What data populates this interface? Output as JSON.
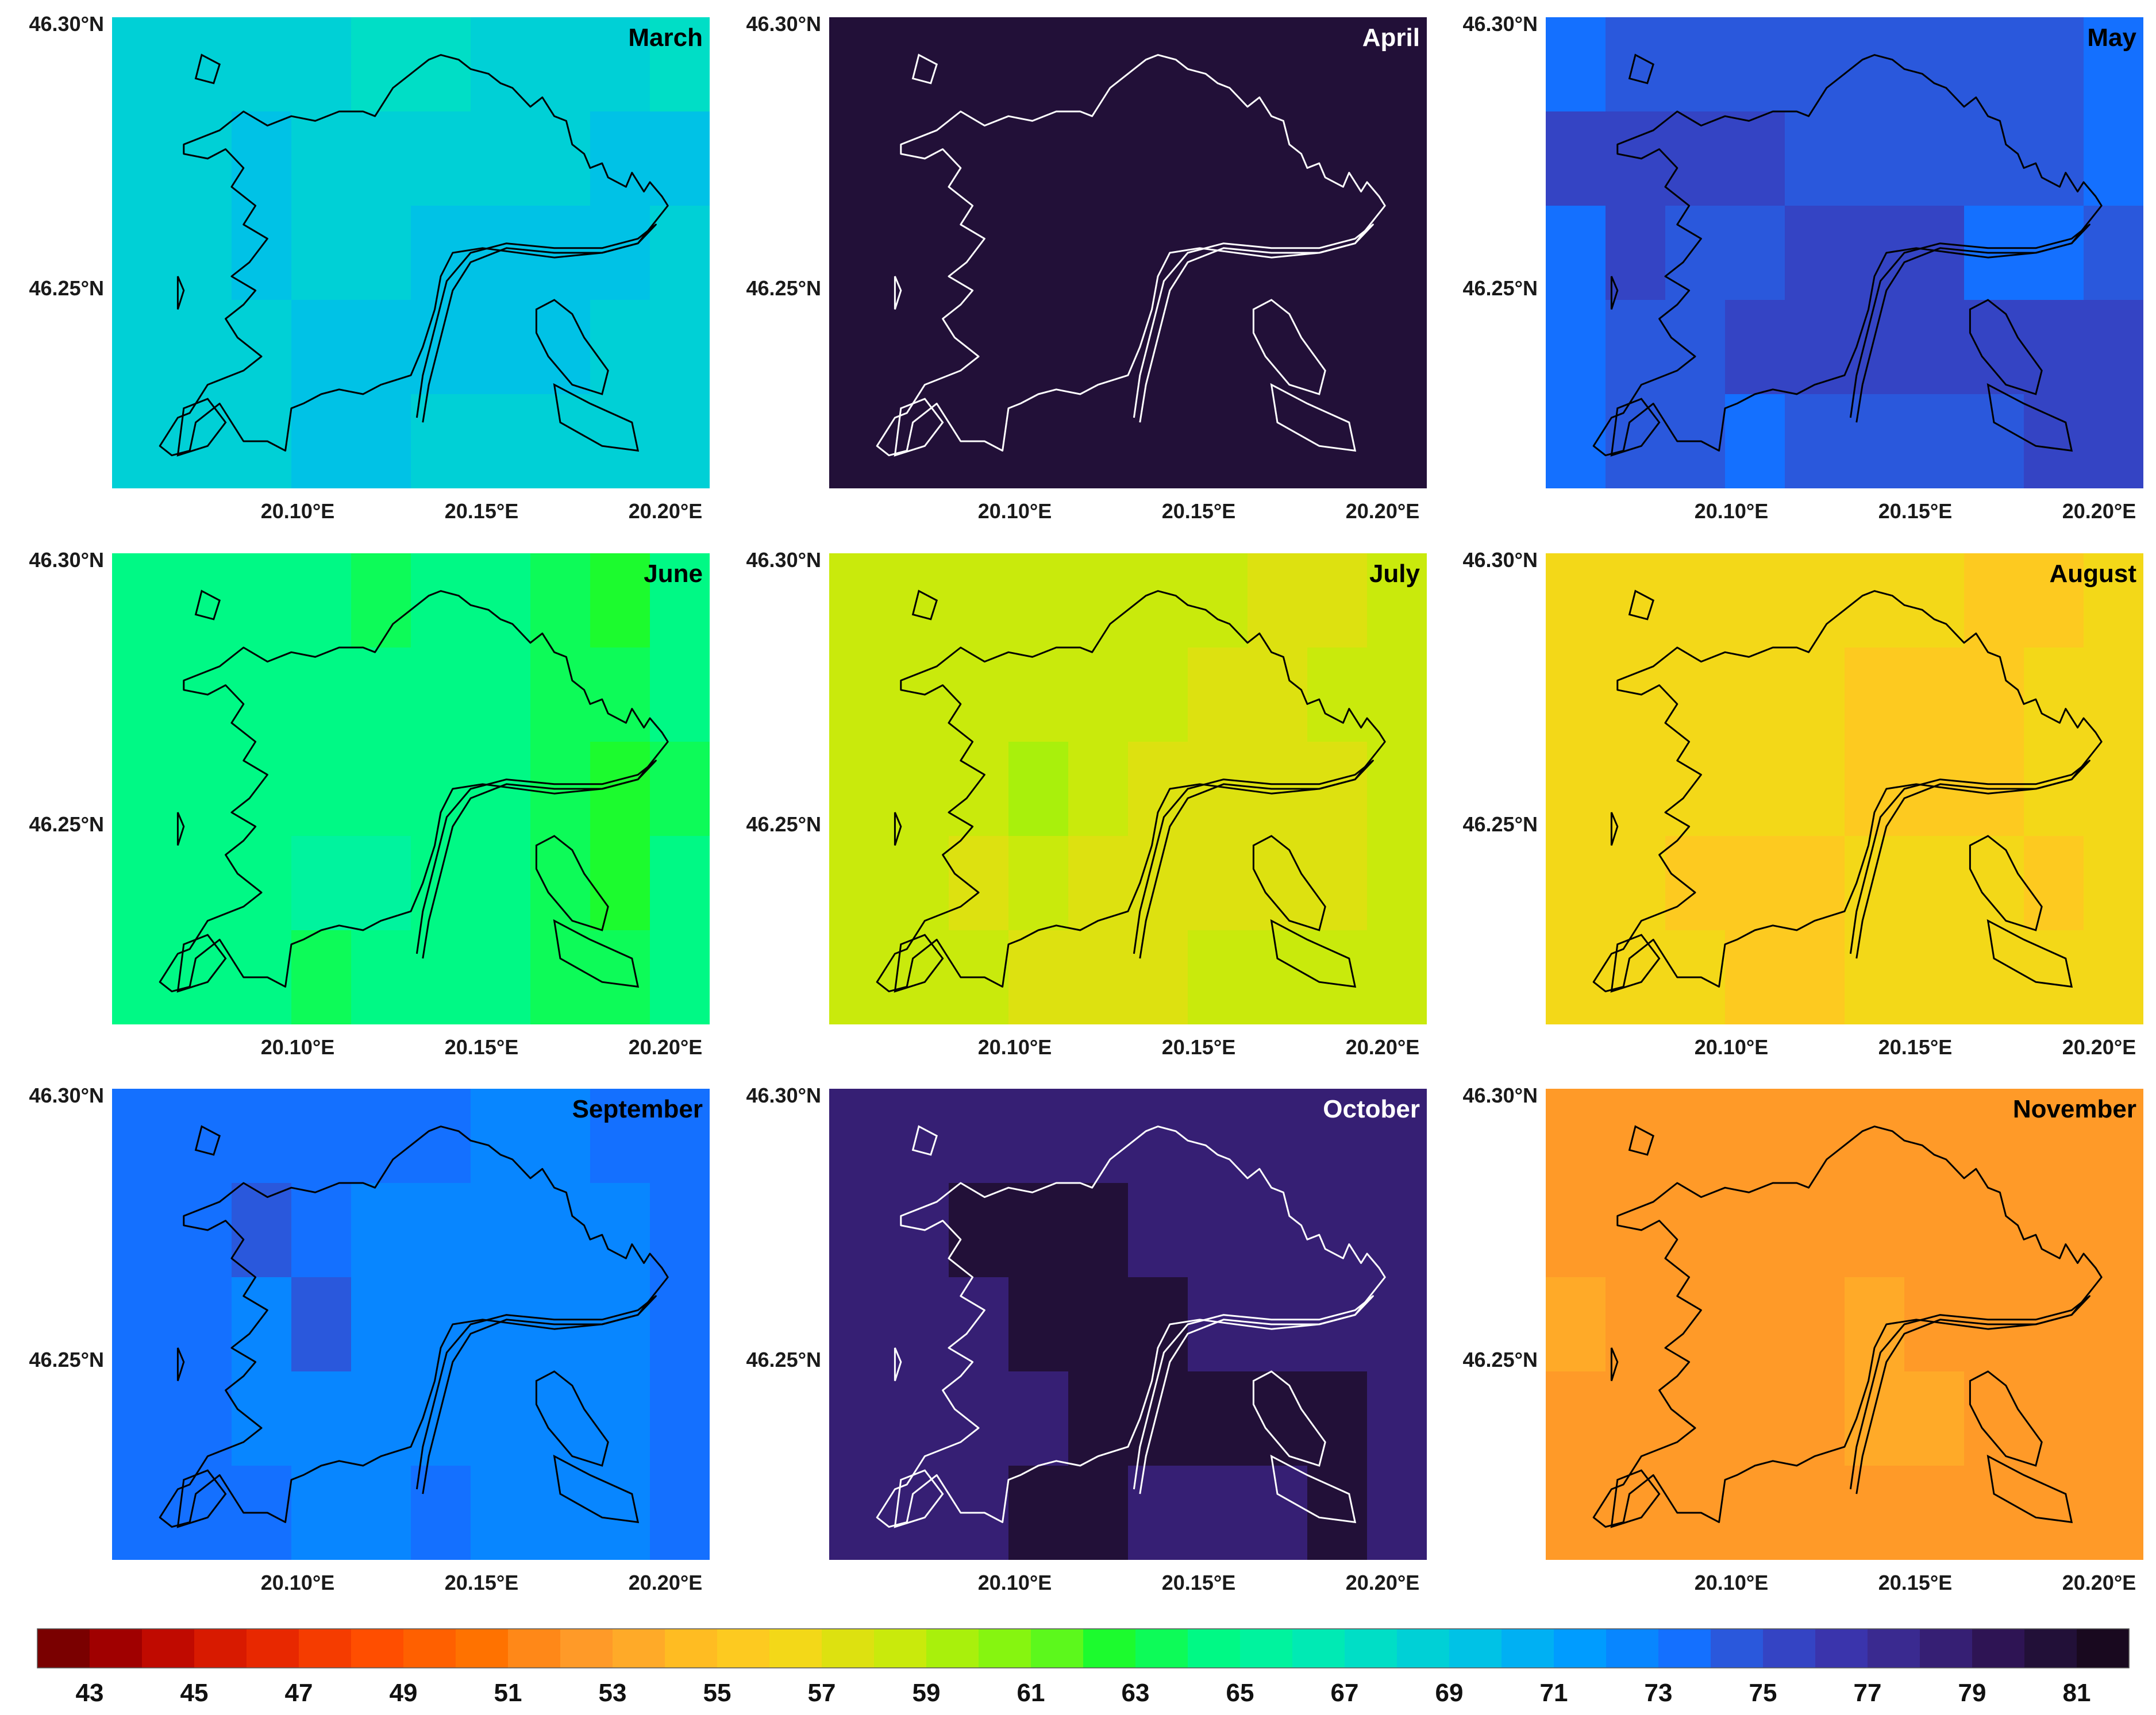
{
  "figure": {
    "panels": [
      {
        "title": "March",
        "value": 68,
        "cells": [
          [
            0,
            0.5,
            0.5,
            0.5,
            -0.3,
            -0.3,
            0.4,
            0.6,
            0.5,
            -0.3
          ],
          [
            0.5,
            0.6,
            1,
            0.4,
            0.4,
            0.3,
            0.5,
            0.9,
            1.3,
            1.3
          ],
          [
            0.6,
            0.9,
            1,
            0.6,
            0.8,
            1.4,
            1.3,
            1.2,
            1.6,
            0
          ],
          [
            0,
            0.9,
            0.8,
            1.4,
            1.1,
            1.5,
            1.6,
            1.8,
            0.6,
            0
          ],
          [
            0.4,
            0.6,
            0.7,
            1.5,
            1.6,
            0.6,
            0.5,
            0.4,
            0.9,
            0
          ]
        ],
        "title_color": "#000000",
        "outline_color": "#000000"
      },
      {
        "title": "April",
        "value": 80.3,
        "cells": [],
        "title_color": "#ffffff",
        "outline_color": "#ffffff"
      },
      {
        "title": "May",
        "value": 73.7,
        "cells": [
          [
            0,
            0.6,
            0.9,
            0.7,
            0.9,
            0.5,
            0.4,
            0.7,
            0.4,
            0
          ],
          [
            1.3,
            1.6,
            1.6,
            1.3,
            1.1,
            0.9,
            0.7,
            0.9,
            0.8,
            0
          ],
          [
            0,
            1.6,
            1.2,
            1.0,
            1.4,
            1.5,
            1.3,
            -0.5,
            -0.6,
            1
          ],
          [
            0,
            1.0,
            1.2,
            1.4,
            1.5,
            1.6,
            1.6,
            1.7,
            1.8,
            1.6
          ],
          [
            0,
            0.8,
            0.6,
            -0.6,
            0.9,
            0.6,
            0.6,
            1.2,
            1.6,
            1.6
          ]
        ],
        "title_color": "#000000",
        "outline_color": "#000000"
      },
      {
        "title": "June",
        "value": 64.2,
        "cells": [
          [
            0,
            0,
            0,
            0,
            -0.3,
            0,
            0,
            -1,
            -1.5,
            0
          ],
          [
            0,
            0,
            0.3,
            0.4,
            0.5,
            0.5,
            0.3,
            -0.8,
            -0.5,
            0
          ],
          [
            0,
            0,
            0,
            0.5,
            0.7,
            0.4,
            0.2,
            -1.2,
            -1.5,
            -1.0
          ],
          [
            0,
            0,
            0.7,
            0.8,
            0.9,
            0.4,
            0.3,
            -0.8,
            -1.5,
            0
          ],
          [
            0,
            0,
            0.4,
            -0.8,
            0.3,
            0.2,
            0.1,
            -0.5,
            -1,
            0
          ]
        ],
        "title_color": "#000000",
        "outline_color": "#000000"
      },
      {
        "title": "July",
        "value": 58.4,
        "cells": [
          [
            0,
            0,
            0,
            0,
            0,
            0,
            0,
            -0.8,
            -1,
            0
          ],
          [
            0,
            0,
            0.3,
            0.5,
            0,
            0,
            -0.5,
            -0.6,
            -0.3,
            0
          ],
          [
            0,
            0,
            0.3,
            0.6,
            0,
            -0.5,
            -0.6,
            -0.6,
            -1,
            -0.3
          ],
          [
            0,
            0,
            -0.8,
            -0.4,
            -0.5,
            -0.6,
            -0.6,
            -0.5,
            -1,
            0
          ],
          [
            0,
            0,
            0,
            -0.6,
            -1,
            -0.5,
            -0.4,
            -0.3,
            0,
            0
          ]
        ],
        "title_color": "#000000",
        "outline_color": "#000000"
      },
      {
        "title": "August",
        "value": 56.2,
        "cells": [
          [
            0,
            0,
            0,
            0,
            0,
            0,
            0,
            -0.4,
            -0.4,
            0
          ],
          [
            0,
            0,
            0.5,
            0.3,
            0,
            -0.5,
            -0.5,
            -0.4,
            -0.2,
            0
          ],
          [
            0,
            0,
            0.4,
            0.3,
            0,
            -0.5,
            -0.6,
            -0.5,
            0,
            0
          ],
          [
            0,
            0,
            -0.6,
            -0.5,
            -0.8,
            -0.2,
            0,
            0.3,
            -0.6,
            0
          ],
          [
            0,
            0,
            0.4,
            -0.7,
            -1,
            0.3,
            0.2,
            0.3,
            0,
            0
          ]
        ],
        "title_color": "#000000",
        "outline_color": "#000000"
      },
      {
        "title": "September",
        "value": 73.1,
        "cells": [
          [
            0,
            0,
            0,
            0,
            0,
            0,
            -0.6,
            -0.5,
            0,
            0
          ],
          [
            0,
            0,
            1.2,
            0.4,
            -0.7,
            -0.7,
            -0.6,
            -0.5,
            -0.6,
            0
          ],
          [
            0,
            0,
            -0.4,
            1.1,
            -0.5,
            -0.8,
            -0.7,
            -0.4,
            -0.6,
            0
          ],
          [
            0,
            0,
            -0.6,
            -0.7,
            -0.5,
            -0.6,
            -0.8,
            -0.5,
            -0.4,
            0
          ],
          [
            0,
            0,
            0,
            -0.7,
            -0.4,
            0,
            -0.6,
            -0.6,
            -0.7,
            0
          ]
        ],
        "title_color": "#000000",
        "outline_color": "#000000"
      },
      {
        "title": "October",
        "value": 78.3,
        "cells": [
          [
            0,
            0,
            0,
            0,
            0,
            0,
            0,
            0,
            0,
            0
          ],
          [
            0,
            0,
            1.9,
            1.9,
            1.9,
            0,
            0,
            0,
            0,
            0
          ],
          [
            0,
            0,
            0,
            1.9,
            1.9,
            1.9,
            0,
            0,
            0,
            0
          ],
          [
            0,
            0,
            0,
            0,
            1.9,
            1.9,
            1.9,
            1.9,
            1.9,
            0
          ],
          [
            0,
            0,
            0,
            1.9,
            1.9,
            0,
            0,
            0,
            1.9,
            0
          ]
        ],
        "title_color": "#ffffff",
        "outline_color": "#ffffff"
      },
      {
        "title": "November",
        "value": 52.3,
        "cells": [
          [
            0,
            0,
            0,
            0,
            0,
            0,
            0,
            0,
            0,
            0
          ],
          [
            0,
            0,
            0,
            0,
            0.5,
            0.5,
            0.5,
            0.5,
            0,
            0
          ],
          [
            0.8,
            0,
            0,
            0,
            0.6,
            0.7,
            0.6,
            0.5,
            -0.2,
            0
          ],
          [
            0,
            0,
            0,
            0,
            0.6,
            0.8,
            0.8,
            0.5,
            0.6,
            0
          ],
          [
            0,
            0,
            0,
            0,
            0,
            0,
            0,
            0.3,
            0,
            0
          ]
        ],
        "title_color": "#000000",
        "outline_color": "#000000"
      }
    ],
    "x_ticks": [
      "20.10°E",
      "20.15°E",
      "20.20°E"
    ],
    "y_ticks": [
      "46.30°N",
      "46.25°N"
    ],
    "colorbar": {
      "tick_labels": [
        "43",
        "45",
        "47",
        "49",
        "51",
        "53",
        "55",
        "57",
        "59",
        "61",
        "63",
        "65",
        "67",
        "69",
        "71",
        "73",
        "75",
        "77",
        "79",
        "81"
      ],
      "min": 42,
      "max": 82,
      "colors": [
        "#7a0000",
        "#a00000",
        "#c00a00",
        "#d81a00",
        "#e82800",
        "#f53c00",
        "#ff4e00",
        "#ff6000",
        "#ff7200",
        "#ff8818",
        "#ff9a28",
        "#ffaa28",
        "#ffbc22",
        "#fdca20",
        "#f3d818",
        "#dde110",
        "#c9ea0c",
        "#a9f00c",
        "#86f510",
        "#5cf81c",
        "#1cfb2e",
        "#0dfb58",
        "#00f985",
        "#00f39e",
        "#00eab4",
        "#00dec6",
        "#00d0d6",
        "#00c2e6",
        "#00b0f3",
        "#009cff",
        "#0886ff",
        "#1470ff",
        "#2a58dc",
        "#3444c4",
        "#3a34ac",
        "#3a2a90",
        "#361f74",
        "#2e1454",
        "#221038",
        "#19091f"
      ]
    }
  }
}
